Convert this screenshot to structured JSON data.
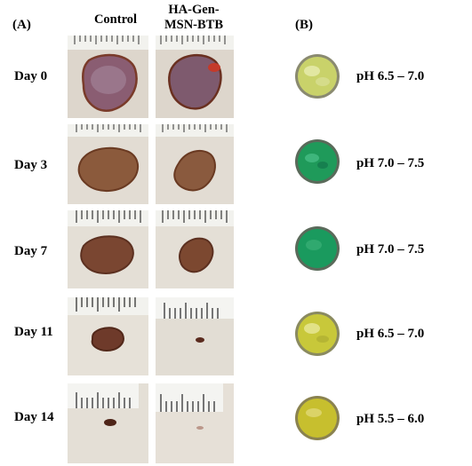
{
  "panel_a": {
    "label": "(A)",
    "col_control": "Control",
    "col_treatment_line1": "HA-Gen-",
    "col_treatment_line2": "MSN-BTB",
    "days": [
      "Day 0",
      "Day 3",
      "Day 7",
      "Day 11",
      "Day 14"
    ]
  },
  "panel_b": {
    "label": "(B)",
    "ph_labels": [
      "pH 6.5 – 7.0",
      "pH 7.0 – 7.5",
      "pH 7.0 – 7.5",
      "pH 6.5 – 7.0",
      "pH 5.5 – 6.0"
    ],
    "dish_colors": [
      "#c9d26a",
      "#1f9a5a",
      "#1a9a5e",
      "#c8c83a",
      "#c7bf2e"
    ]
  },
  "colors": {
    "skin": "#d9d2c8",
    "fur": "#ece7df",
    "ruler": "#f3f3f0",
    "wound_fresh": "#8c5a66",
    "wound_scab": "#7a4a32"
  }
}
